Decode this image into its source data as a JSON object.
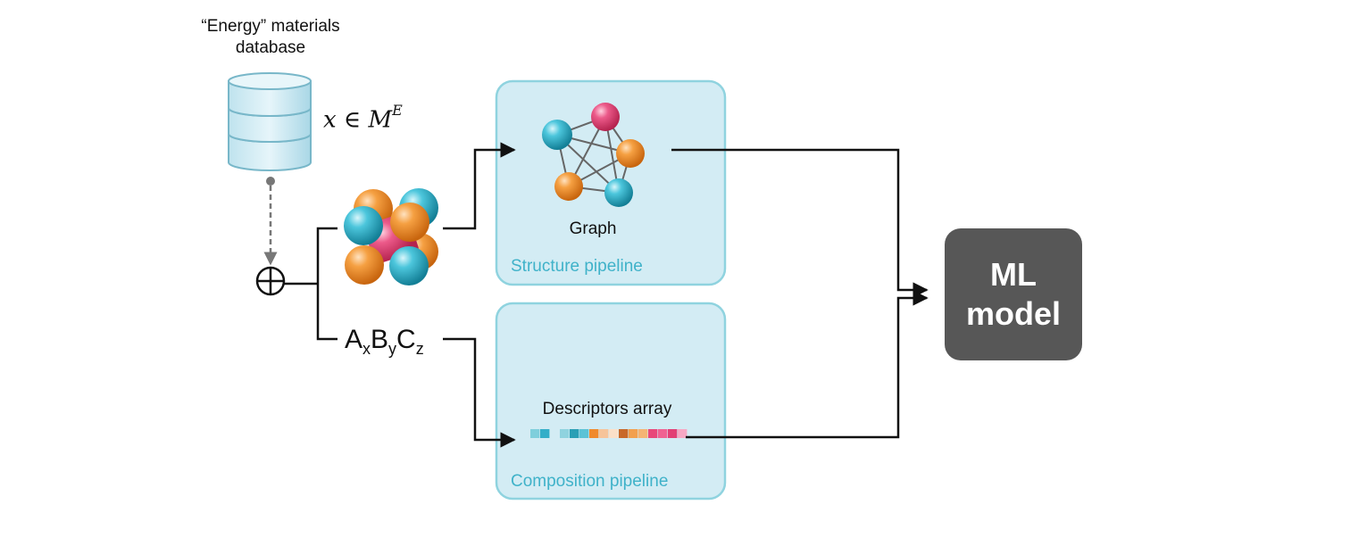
{
  "database": {
    "title_line1": "“Energy” materials",
    "title_line2": "database",
    "membership_math": "x ∈ M",
    "membership_superscript": "E",
    "icon": "database-icon"
  },
  "composition": {
    "A": "A",
    "A_sub": "x",
    "B": "B",
    "B_sub": "y",
    "C": "C",
    "C_sub": "z"
  },
  "structure_pipeline": {
    "label": "Structure pipeline",
    "graph_label": "Graph"
  },
  "composition_pipeline": {
    "label": "Composition pipeline",
    "descriptor_label": "Descriptors array"
  },
  "ml_model": {
    "line1": "ML",
    "line2": "model"
  },
  "colors": {
    "pipeline_fill": "#d3ecf4",
    "pipeline_border": "#8fd3df",
    "pipeline_text": "#3fb2c9",
    "cyan_atom": "#28b4cf",
    "orange_atom": "#f28f2e",
    "pink_atom": "#e8487a",
    "ml_box": "#575757",
    "descriptor_cells": [
      "#7fcfdc",
      "#34aec8",
      "#d3ecf4",
      "#8fd3df",
      "#2a9fb5",
      "#5cc3d6",
      "#f08a2c",
      "#f6c49a",
      "#fbe0c8",
      "#c8692a",
      "#f2a04e",
      "#f5b474",
      "#e8487a",
      "#f06292",
      "#e23f75",
      "#f7a8c4"
    ]
  }
}
